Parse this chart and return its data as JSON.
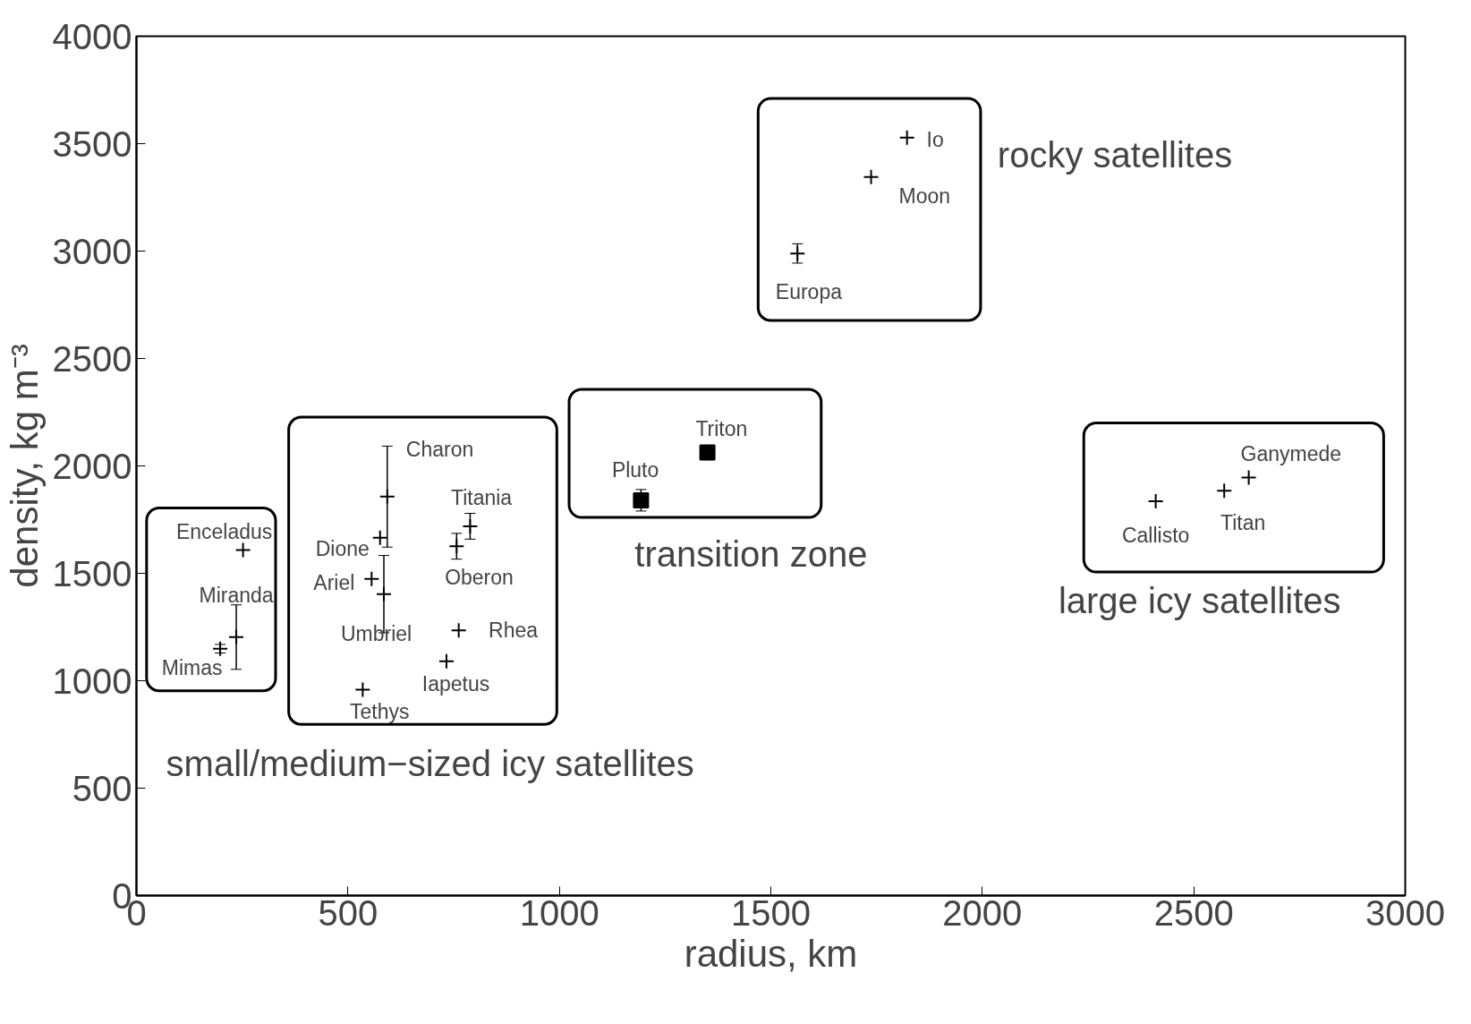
{
  "chart_data": {
    "type": "scatter",
    "xlabel": "radius, km",
    "ylabel": "density, kg m⁻³",
    "xlim": [
      0,
      3000
    ],
    "xticks": [
      0,
      500,
      1000,
      1500,
      2000,
      2500,
      3000
    ],
    "ylim": [
      0,
      4000
    ],
    "yticks": [
      0,
      500,
      1000,
      1500,
      2000,
      2500,
      3000,
      3500,
      4000
    ],
    "grid": false,
    "series": [
      {
        "color": "#000000",
        "marker": "cross",
        "x": [
          252,
          236,
          198
        ],
        "values": [
          1608,
          1203,
          1149
        ],
        "errors": [
          null,
          150,
          20
        ]
      },
      {
        "name": "small/medium−sized icy satellites",
        "color": "#000000",
        "marker": "cross",
        "x": [
          593,
          576,
          556,
          585,
          789,
          757,
          762,
          733,
          535
        ],
        "values": [
          1857,
          1666,
          1474,
          1403,
          1719,
          1626,
          1234,
          1091,
          958
        ],
        "errors": [
          235,
          null,
          null,
          180,
          60,
          60,
          null,
          null,
          null
        ]
      },
      {
        "name": "transition zone",
        "color": "#000000",
        "marker": "square",
        "x": [
          1193,
          1350
        ],
        "values": [
          1840,
          2062
        ],
        "errors": [
          50,
          null
        ]
      },
      {
        "name": "rocky satellites",
        "color": "#000000",
        "marker": "cross",
        "x": [
          1822,
          1737,
          1563
        ],
        "values": [
          3528,
          3345,
          2989
        ],
        "errors": [
          null,
          null,
          45
        ]
      },
      {
        "name": "large icy satellites",
        "color": "#000000",
        "marker": "cross",
        "x": [
          2410,
          2572,
          2630
        ],
        "values": [
          1835,
          1884,
          1946
        ],
        "errors": [
          null,
          null,
          null
        ]
      }
    ],
    "annotations": [
      {
        "text": "Enceladus",
        "x": 252,
        "y": 1608
      },
      {
        "text": "Miranda",
        "x": 236,
        "y": 1203
      },
      {
        "text": "Mimas",
        "x": 198,
        "y": 1149
      },
      {
        "text": "Charon",
        "x": 593,
        "y": 1857
      },
      {
        "text": "Dione",
        "x": 576,
        "y": 1666
      },
      {
        "text": "Ariel",
        "x": 556,
        "y": 1474
      },
      {
        "text": "Umbriel",
        "x": 585,
        "y": 1403
      },
      {
        "text": "Titania",
        "x": 789,
        "y": 1719
      },
      {
        "text": "Oberon",
        "x": 757,
        "y": 1626
      },
      {
        "text": "Rhea",
        "x": 762,
        "y": 1234
      },
      {
        "text": "Iapetus",
        "x": 733,
        "y": 1091
      },
      {
        "text": "Tethys",
        "x": 535,
        "y": 958
      },
      {
        "text": "Pluto",
        "x": 1193,
        "y": 1840
      },
      {
        "text": "Triton",
        "x": 1350,
        "y": 2062
      },
      {
        "text": "Io",
        "x": 1822,
        "y": 3528
      },
      {
        "text": "Moon",
        "x": 1737,
        "y": 3345
      },
      {
        "text": "Europa",
        "x": 1563,
        "y": 2989
      },
      {
        "text": "Callisto",
        "x": 2410,
        "y": 1835
      },
      {
        "text": "Titan",
        "x": 2572,
        "y": 1884
      },
      {
        "text": "Ganymede",
        "x": 2630,
        "y": 1946
      }
    ]
  }
}
